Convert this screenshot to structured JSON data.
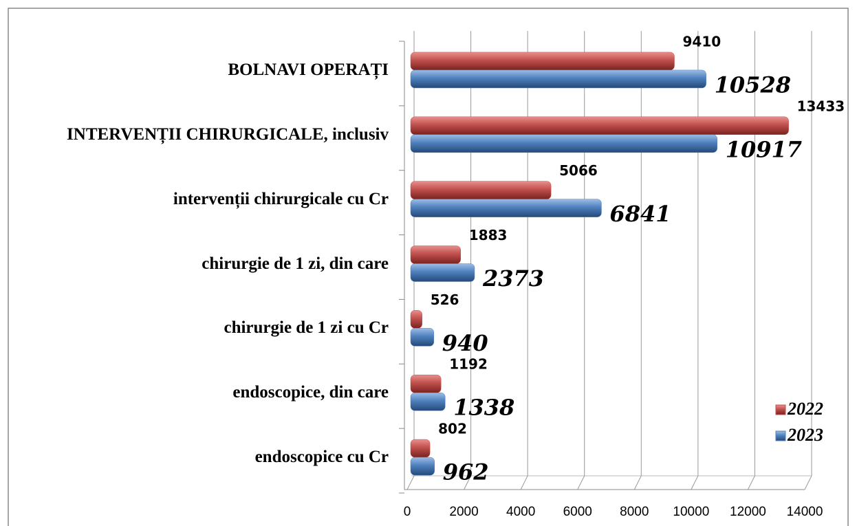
{
  "chart_data": {
    "type": "bar",
    "orientation": "horizontal",
    "three_d": true,
    "categories": [
      "BOLNAVI OPERAȚI",
      "INTERVENȚII CHIRURGICALE, inclusiv",
      "intervenții chirurgicale cu Cr",
      "chirurgie de 1 zi, din care",
      "chirurgie de 1 zi cu Cr",
      "endoscopice, din care",
      "endoscopice cu Cr"
    ],
    "series": [
      {
        "name": "2022",
        "color": "#c0504d",
        "values": [
          9410,
          13433,
          5066,
          1883,
          526,
          1192,
          802
        ]
      },
      {
        "name": "2023",
        "color": "#4f81bd",
        "values": [
          10528,
          10917,
          6841,
          2373,
          940,
          1338,
          962
        ]
      }
    ],
    "xlim": [
      0,
      14000
    ],
    "xticks": [
      0,
      2000,
      4000,
      6000,
      8000,
      10000,
      12000,
      14000
    ],
    "grid": true,
    "legend": "bottom-right"
  }
}
